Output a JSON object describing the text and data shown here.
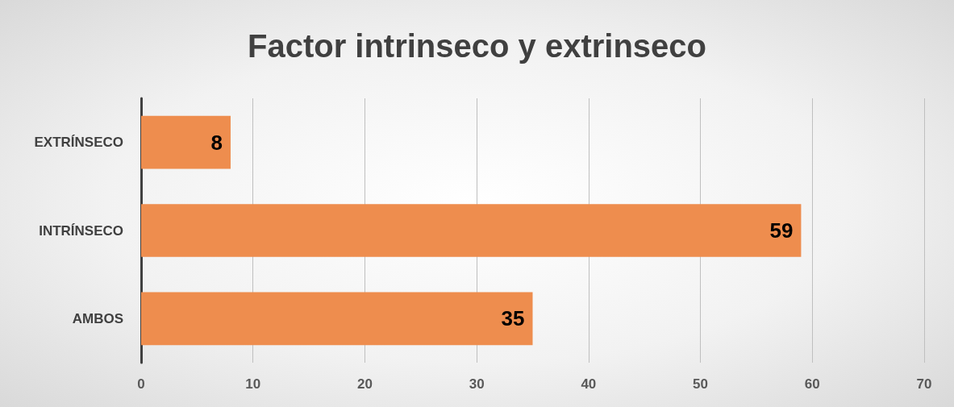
{
  "chart_data": {
    "type": "bar",
    "orientation": "horizontal",
    "title": "Factor intrinseco y extrinseco",
    "categories": [
      "EXTRÍNSECO",
      "INTRÍNSECO",
      "AMBOS"
    ],
    "values": [
      8,
      59,
      35
    ],
    "color": "#ee8d4e",
    "xlim": [
      0,
      70
    ],
    "xticks": [
      0,
      10,
      20,
      30,
      40,
      50,
      60,
      70
    ],
    "grid": "x",
    "data_labels": true
  }
}
